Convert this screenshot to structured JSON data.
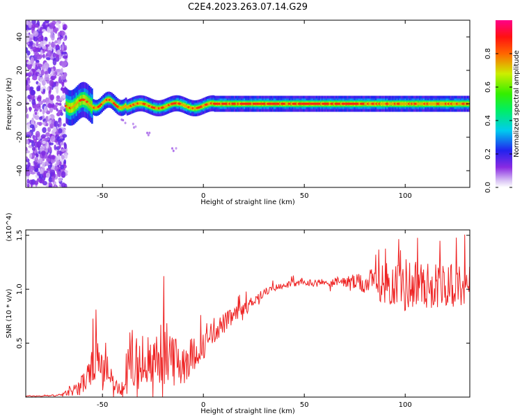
{
  "title": "C2E4.2023.263.07.14.G29",
  "colors": {
    "snr_line": "#ee2222",
    "axes": "#000000",
    "background": "#ffffff"
  },
  "chart_data": [
    {
      "type": "heatmap",
      "title": "C2E4.2023.263.07.14.G29",
      "xlabel": "Height of straight line (km)",
      "ylabel": "Frequency (Hz)",
      "xlim": [
        -88,
        132
      ],
      "ylim": [
        -50,
        50
      ],
      "x_ticks": [
        -50,
        0,
        50,
        100
      ],
      "y_ticks": [
        -40,
        -20,
        0,
        20,
        40
      ],
      "grid": false,
      "colorbar": {
        "label": "Normalized spectral amplitude",
        "range": [
          0,
          1
        ],
        "ticks": [
          "0.0",
          "0.2",
          "0.4",
          "0.6",
          "0.8"
        ],
        "colormap": "rainbow (purple-blue-cyan-green-yellow-red-magenta)"
      },
      "features": [
        {
          "name": "noise-region",
          "x_range": [
            -88,
            -68
          ],
          "y_range": [
            -50,
            50
          ],
          "amplitude": "low"
        },
        {
          "name": "carrier-band",
          "x_range": [
            -68,
            132
          ],
          "center_frequency_hz": 0,
          "half_width_hz": 3,
          "amplitude": "high"
        },
        {
          "name": "lower-multipath-tail",
          "points": [
            [
              -40,
              -10
            ],
            [
              -35,
              -13
            ],
            [
              -27,
              -18
            ],
            [
              -15,
              -27
            ]
          ]
        }
      ]
    },
    {
      "type": "line",
      "xlabel": "Height of straight line (km)",
      "ylabel": "SNR (10 * v/v)",
      "y_scale_label": "(x10^4)",
      "xlim": [
        -88,
        132
      ],
      "ylim": [
        0,
        1.55
      ],
      "x_ticks": [
        -50,
        0,
        50,
        100
      ],
      "y_ticks": [
        0.5,
        1.0,
        1.5
      ],
      "grid": false,
      "series": [
        {
          "color": "#ee2222",
          "x": [
            -88,
            -80,
            -70,
            -65,
            -60,
            -56,
            -53,
            -50,
            -47,
            -44,
            -41,
            -38,
            -35,
            -32,
            -29,
            -26,
            -23,
            -20,
            -17,
            -14,
            -11,
            -8,
            -5,
            -2,
            0,
            3,
            6,
            10,
            15,
            20,
            25,
            30,
            35,
            40,
            50,
            60,
            70,
            80,
            85,
            90,
            95,
            100,
            105,
            110,
            115,
            120,
            125,
            132
          ],
          "values": [
            0.01,
            0.01,
            0.02,
            0.06,
            0.12,
            0.22,
            0.38,
            0.25,
            0.22,
            0.12,
            0.05,
            0.25,
            0.35,
            0.28,
            0.32,
            0.3,
            0.4,
            0.38,
            0.42,
            0.3,
            0.32,
            0.36,
            0.4,
            0.45,
            0.47,
            0.55,
            0.62,
            0.68,
            0.75,
            0.82,
            0.9,
            0.97,
            1.01,
            1.04,
            1.06,
            1.06,
            1.07,
            1.05,
            1.07,
            1.05,
            1.06,
            1.04,
            1.05,
            1.03,
            1.04,
            1.04,
            1.03,
            1.04
          ],
          "noise_amplitude": [
            0.005,
            0.005,
            0.01,
            0.05,
            0.1,
            0.15,
            0.2,
            0.14,
            0.1,
            0.08,
            0.04,
            0.25,
            0.35,
            0.3,
            0.28,
            0.25,
            0.28,
            0.3,
            0.3,
            0.28,
            0.25,
            0.2,
            0.16,
            0.14,
            0.12,
            0.12,
            0.11,
            0.1,
            0.08,
            0.06,
            0.05,
            0.04,
            0.03,
            0.03,
            0.03,
            0.04,
            0.05,
            0.1,
            0.14,
            0.2,
            0.22,
            0.26,
            0.24,
            0.22,
            0.22,
            0.2,
            0.2,
            0.18
          ]
        }
      ]
    }
  ]
}
